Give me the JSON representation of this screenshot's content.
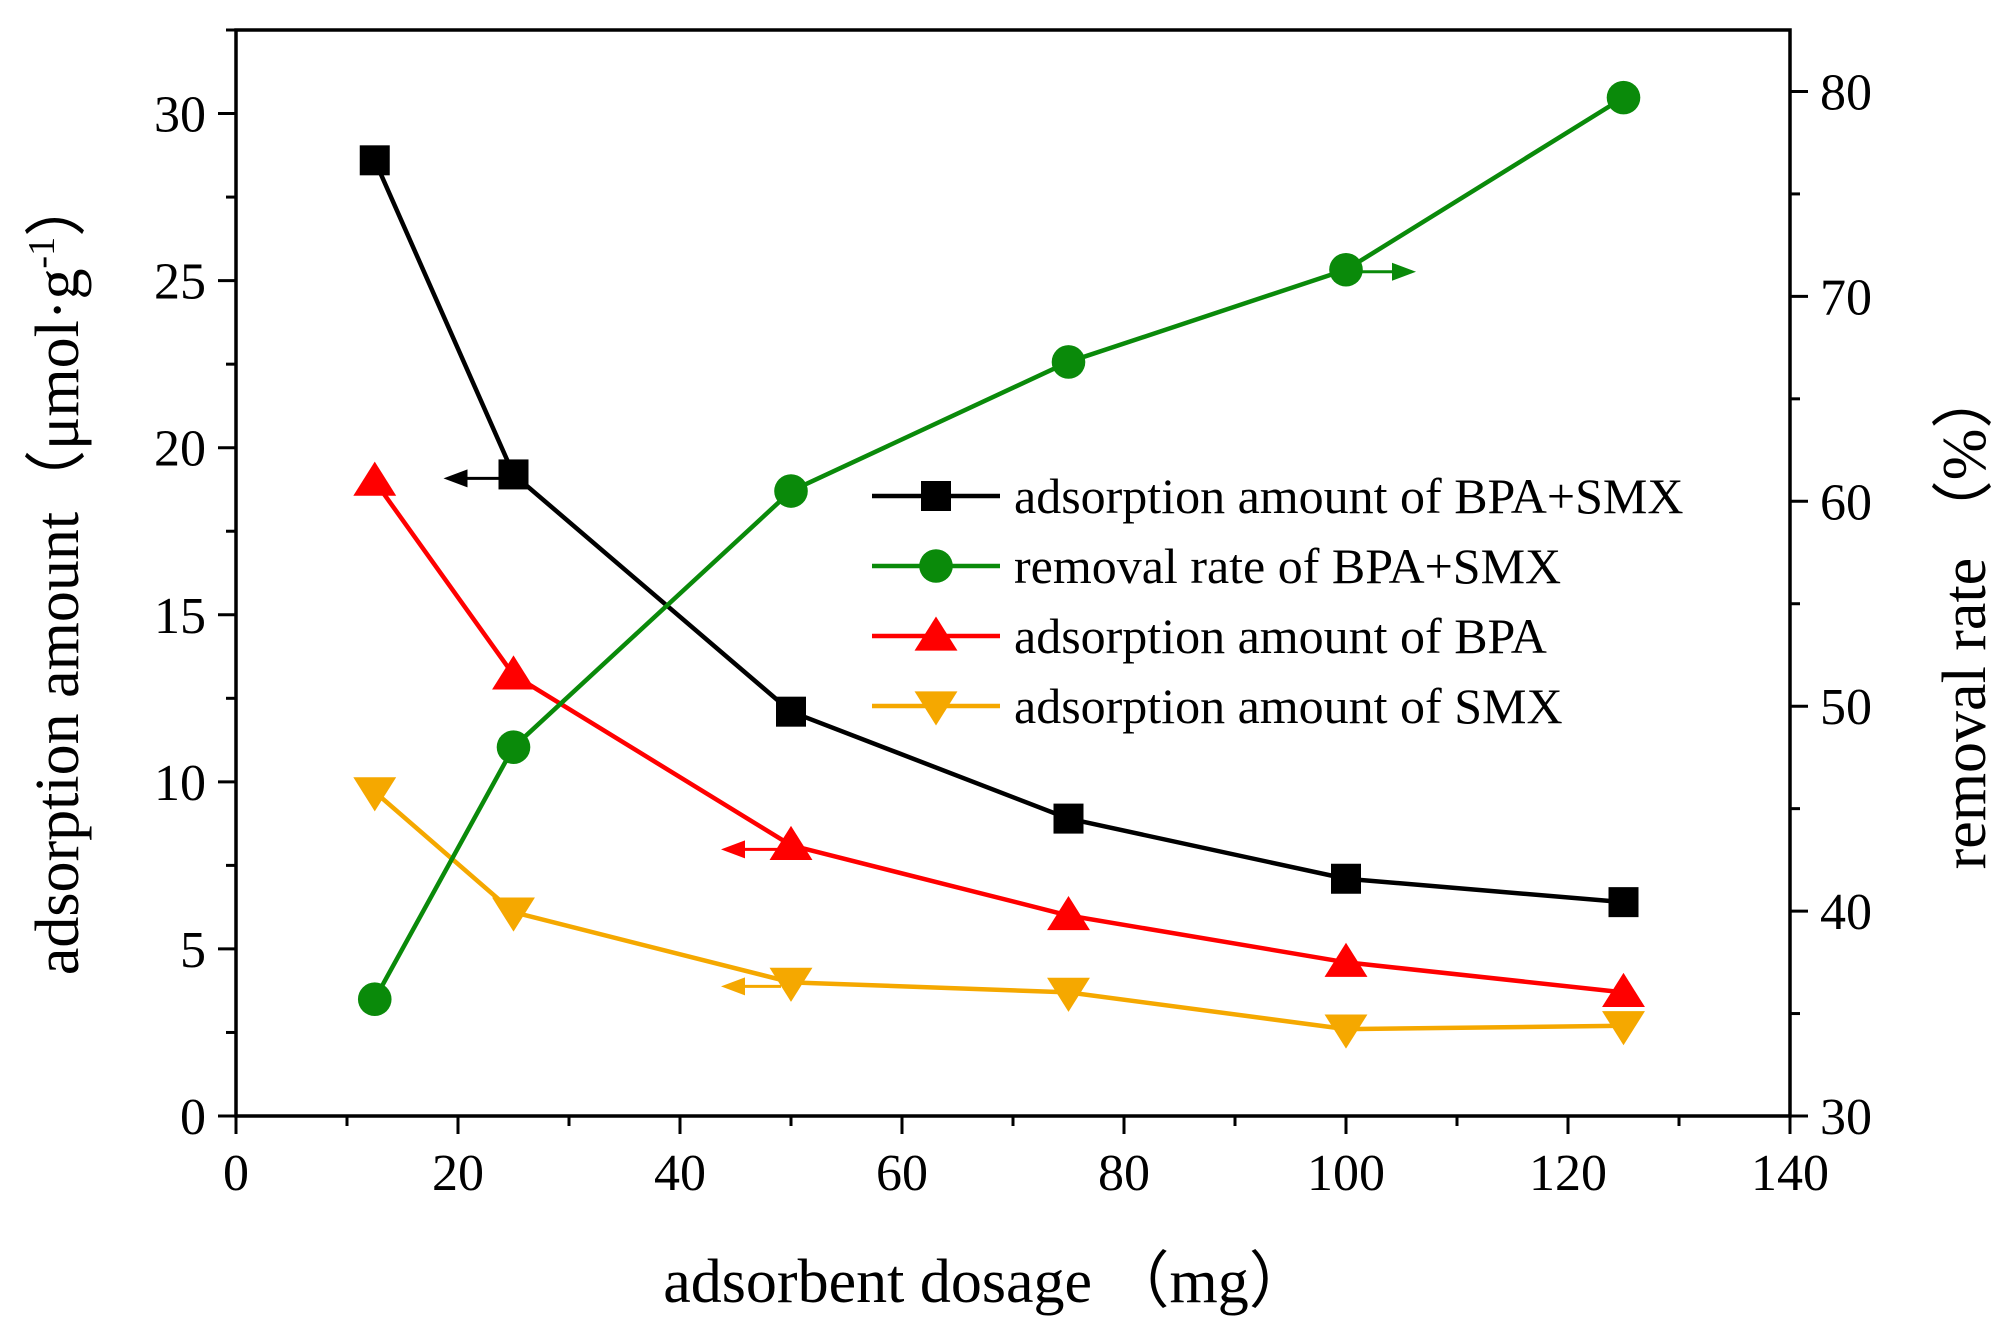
{
  "chart_data": {
    "type": "line",
    "title": "",
    "xlabel": "adsorbent dosage （mg）",
    "ylabel": "adsorption amount（μmol·g-1）",
    "ylabel_main": "adsorption amount（μmol·g",
    "ylabel_sup": "-1",
    "ylabel_close": "）",
    "y2label": "removal rate （%）",
    "xlim": [
      0,
      140
    ],
    "ylim": [
      0,
      32.5
    ],
    "y2lim": [
      30,
      83
    ],
    "xticks": [
      0,
      20,
      40,
      60,
      80,
      100,
      120,
      140
    ],
    "yticks": [
      0,
      5,
      10,
      15,
      20,
      25,
      30
    ],
    "y2ticks": [
      30,
      40,
      50,
      60,
      70,
      80
    ],
    "x": [
      12.5,
      25,
      50,
      75,
      100,
      125
    ],
    "legend_position": "center-right",
    "series": [
      {
        "name": "adsorption amount of BPA+SMX",
        "axis": "left",
        "marker": "square",
        "color": "#000000",
        "values": [
          28.6,
          19.2,
          12.1,
          8.9,
          7.1,
          6.4
        ]
      },
      {
        "name": "removal rate of BPA+SMX",
        "axis": "right",
        "marker": "circle",
        "color": "#0a8a0a",
        "values": [
          35.7,
          48.0,
          60.5,
          66.8,
          71.3,
          79.7
        ]
      },
      {
        "name": "adsorption amount of BPA",
        "axis": "left",
        "marker": "triangle-up",
        "color": "#ff0000",
        "values": [
          19.0,
          13.2,
          8.1,
          6.0,
          4.6,
          3.7
        ]
      },
      {
        "name": "adsorption amount of SMX",
        "axis": "left",
        "marker": "triangle-down",
        "color": "#f5a800",
        "values": [
          9.7,
          6.1,
          4.0,
          3.7,
          2.6,
          2.7
        ]
      }
    ],
    "annotations": [
      {
        "type": "arrow",
        "direction": "left",
        "series": 0,
        "at_x": 25,
        "color": "#000000"
      },
      {
        "type": "arrow",
        "direction": "right",
        "series": 1,
        "at_x": 100,
        "color": "#0a8a0a"
      },
      {
        "type": "arrow",
        "direction": "left",
        "series": 2,
        "at_x": 50,
        "color": "#ff0000"
      },
      {
        "type": "arrow",
        "direction": "left",
        "series": 3,
        "at_x": 50,
        "color": "#f5a800"
      }
    ]
  }
}
